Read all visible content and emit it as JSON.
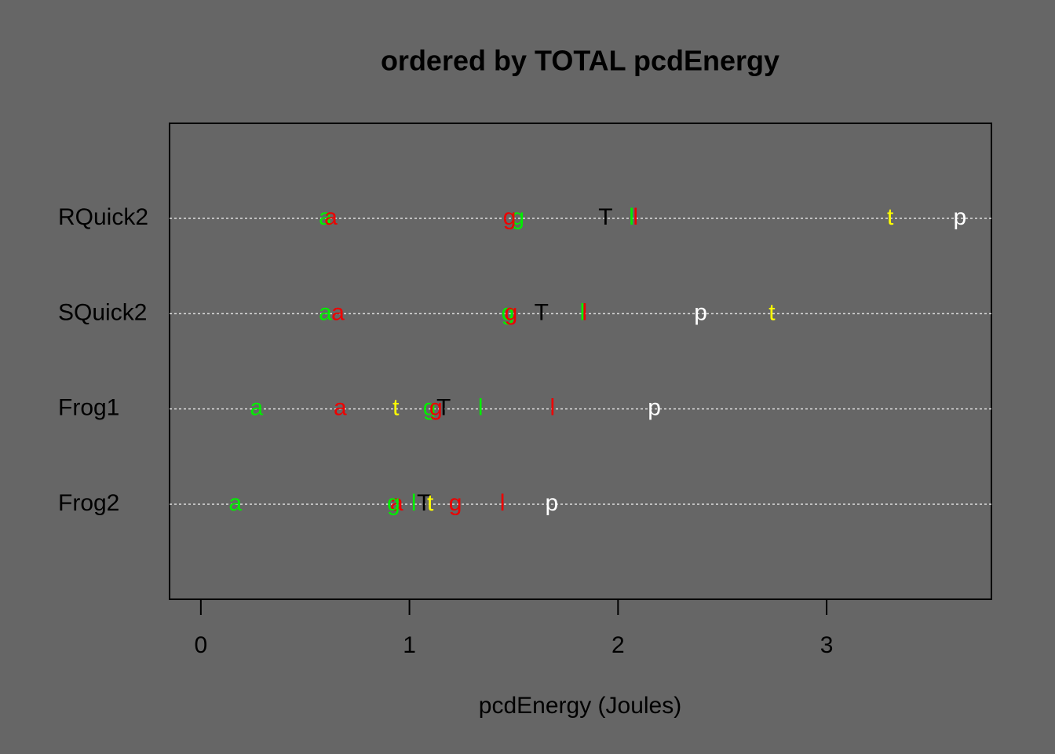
{
  "chart_data": {
    "type": "dotplot",
    "title": "ordered by TOTAL pcdEnergy",
    "x_label": "pcdEnergy (Joules)",
    "categories": [
      "RQuick2",
      "SQuick2",
      "Frog1",
      "Frog2"
    ],
    "series": [
      {
        "symbol": "a",
        "color": "#00ee00",
        "values": [
          0.597,
          0.597,
          0.267,
          0.165
        ]
      },
      {
        "symbol": "a",
        "color": "#ee0000",
        "values": [
          0.623,
          0.657,
          0.668,
          0.939
        ]
      },
      {
        "symbol": "g",
        "color": "#00ee00",
        "values": [
          1.52,
          1.472,
          1.096,
          0.924
        ]
      },
      {
        "symbol": "g",
        "color": "#ee0000",
        "values": [
          1.48,
          1.487,
          1.127,
          1.22
        ]
      },
      {
        "symbol": "T",
        "color": "#000000",
        "values": [
          1.94,
          1.633,
          1.164,
          1.07
        ]
      },
      {
        "symbol": "l",
        "color": "#00ee00",
        "values": [
          2.065,
          1.829,
          1.341,
          1.021
        ]
      },
      {
        "symbol": "l",
        "color": "#ee0000",
        "values": [
          2.084,
          1.84,
          1.686,
          1.446
        ]
      },
      {
        "symbol": "t",
        "color": "#ffff00",
        "values": [
          3.305,
          2.738,
          0.935,
          1.1
        ]
      },
      {
        "symbol": "p",
        "color": "#ffffff",
        "values": [
          3.639,
          2.396,
          2.174,
          1.682
        ]
      }
    ],
    "xlim": [
      -0.15,
      3.79
    ],
    "xticks": [
      0,
      1,
      2,
      3
    ],
    "grid": true
  }
}
